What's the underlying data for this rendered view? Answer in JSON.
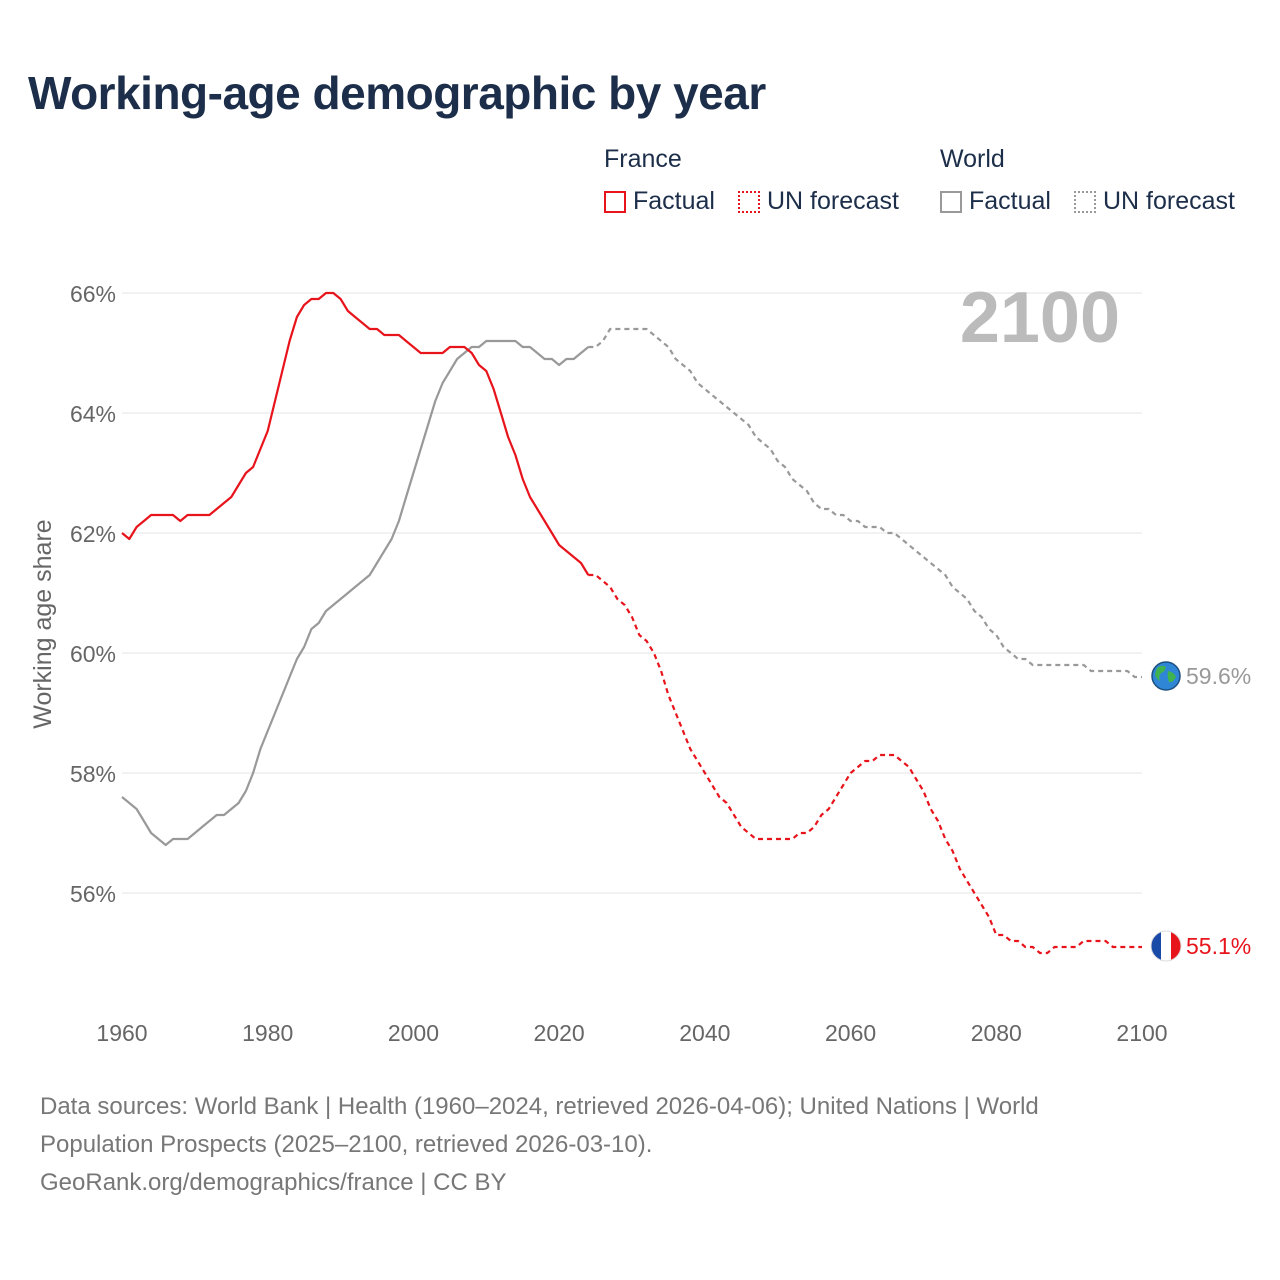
{
  "title": "Working-age demographic by year",
  "legend": {
    "france": {
      "name": "France",
      "factual": "Factual",
      "forecast": "UN forecast"
    },
    "world": {
      "name": "World",
      "factual": "Factual",
      "forecast": "UN forecast"
    }
  },
  "year_display": "2100",
  "end_labels": {
    "world": "59.6%",
    "france": "55.1%"
  },
  "footer": {
    "line1": "Data sources: World Bank | Health (1960–2024, retrieved 2026-04-06); United Nations | World",
    "line2": "Population Prospects (2025–2100, retrieved 2026-03-10).",
    "line3": "GeoRank.org/demographics/france | CC BY"
  },
  "colors": {
    "france": "#e8141c",
    "world": "#999999",
    "title": "#1c2e4a",
    "axis_text": "#666666",
    "grid": "#e6e6e6",
    "year": "#bbbbbb"
  },
  "chart_data": {
    "type": "line",
    "title": "Working-age demographic by year",
    "xlabel": "",
    "ylabel": "Working age share",
    "xlim": [
      1960,
      2100
    ],
    "ylim": [
      54,
      67
    ],
    "x_ticks": [
      1960,
      1980,
      2000,
      2020,
      2040,
      2060,
      2080,
      2100
    ],
    "y_ticks": [
      56,
      58,
      60,
      62,
      64,
      66
    ],
    "y_tick_labels": [
      "56%",
      "58%",
      "60%",
      "62%",
      "64%",
      "66%"
    ],
    "grid": true,
    "series": [
      {
        "name": "France",
        "segment": "Factual",
        "style": "solid",
        "points": [
          [
            1960,
            62.0
          ],
          [
            1961,
            61.9
          ],
          [
            1962,
            62.1
          ],
          [
            1963,
            62.2
          ],
          [
            1964,
            62.3
          ],
          [
            1965,
            62.3
          ],
          [
            1966,
            62.3
          ],
          [
            1967,
            62.3
          ],
          [
            1968,
            62.2
          ],
          [
            1969,
            62.3
          ],
          [
            1970,
            62.3
          ],
          [
            1971,
            62.3
          ],
          [
            1972,
            62.3
          ],
          [
            1973,
            62.4
          ],
          [
            1974,
            62.5
          ],
          [
            1975,
            62.6
          ],
          [
            1976,
            62.8
          ],
          [
            1977,
            63.0
          ],
          [
            1978,
            63.1
          ],
          [
            1979,
            63.4
          ],
          [
            1980,
            63.7
          ],
          [
            1981,
            64.2
          ],
          [
            1982,
            64.7
          ],
          [
            1983,
            65.2
          ],
          [
            1984,
            65.6
          ],
          [
            1985,
            65.8
          ],
          [
            1986,
            65.9
          ],
          [
            1987,
            65.9
          ],
          [
            1988,
            66.0
          ],
          [
            1989,
            66.0
          ],
          [
            1990,
            65.9
          ],
          [
            1991,
            65.7
          ],
          [
            1992,
            65.6
          ],
          [
            1993,
            65.5
          ],
          [
            1994,
            65.4
          ],
          [
            1995,
            65.4
          ],
          [
            1996,
            65.3
          ],
          [
            1997,
            65.3
          ],
          [
            1998,
            65.3
          ],
          [
            1999,
            65.2
          ],
          [
            2000,
            65.1
          ],
          [
            2001,
            65.0
          ],
          [
            2002,
            65.0
          ],
          [
            2003,
            65.0
          ],
          [
            2004,
            65.0
          ],
          [
            2005,
            65.1
          ],
          [
            2006,
            65.1
          ],
          [
            2007,
            65.1
          ],
          [
            2008,
            65.0
          ],
          [
            2009,
            64.8
          ],
          [
            2010,
            64.7
          ],
          [
            2011,
            64.4
          ],
          [
            2012,
            64.0
          ],
          [
            2013,
            63.6
          ],
          [
            2014,
            63.3
          ],
          [
            2015,
            62.9
          ],
          [
            2016,
            62.6
          ],
          [
            2017,
            62.4
          ],
          [
            2018,
            62.2
          ],
          [
            2019,
            62.0
          ],
          [
            2020,
            61.8
          ],
          [
            2021,
            61.7
          ],
          [
            2022,
            61.6
          ],
          [
            2023,
            61.5
          ],
          [
            2024,
            61.3
          ]
        ]
      },
      {
        "name": "France",
        "segment": "UN forecast",
        "style": "dashed",
        "points": [
          [
            2024,
            61.3
          ],
          [
            2025,
            61.3
          ],
          [
            2026,
            61.2
          ],
          [
            2027,
            61.1
          ],
          [
            2028,
            60.9
          ],
          [
            2029,
            60.8
          ],
          [
            2030,
            60.6
          ],
          [
            2031,
            60.3
          ],
          [
            2032,
            60.2
          ],
          [
            2033,
            60.0
          ],
          [
            2034,
            59.7
          ],
          [
            2035,
            59.3
          ],
          [
            2036,
            59.0
          ],
          [
            2037,
            58.7
          ],
          [
            2038,
            58.4
          ],
          [
            2039,
            58.2
          ],
          [
            2040,
            58.0
          ],
          [
            2041,
            57.8
          ],
          [
            2042,
            57.6
          ],
          [
            2043,
            57.5
          ],
          [
            2044,
            57.3
          ],
          [
            2045,
            57.1
          ],
          [
            2046,
            57.0
          ],
          [
            2047,
            56.9
          ],
          [
            2048,
            56.9
          ],
          [
            2049,
            56.9
          ],
          [
            2050,
            56.9
          ],
          [
            2051,
            56.9
          ],
          [
            2052,
            56.9
          ],
          [
            2053,
            57.0
          ],
          [
            2054,
            57.0
          ],
          [
            2055,
            57.1
          ],
          [
            2056,
            57.3
          ],
          [
            2057,
            57.4
          ],
          [
            2058,
            57.6
          ],
          [
            2059,
            57.8
          ],
          [
            2060,
            58.0
          ],
          [
            2061,
            58.1
          ],
          [
            2062,
            58.2
          ],
          [
            2063,
            58.2
          ],
          [
            2064,
            58.3
          ],
          [
            2065,
            58.3
          ],
          [
            2066,
            58.3
          ],
          [
            2067,
            58.2
          ],
          [
            2068,
            58.1
          ],
          [
            2069,
            57.9
          ],
          [
            2070,
            57.7
          ],
          [
            2071,
            57.4
          ],
          [
            2072,
            57.2
          ],
          [
            2073,
            56.9
          ],
          [
            2074,
            56.7
          ],
          [
            2075,
            56.4
          ],
          [
            2076,
            56.2
          ],
          [
            2077,
            56.0
          ],
          [
            2078,
            55.8
          ],
          [
            2079,
            55.6
          ],
          [
            2080,
            55.3
          ],
          [
            2081,
            55.3
          ],
          [
            2082,
            55.2
          ],
          [
            2083,
            55.2
          ],
          [
            2084,
            55.1
          ],
          [
            2085,
            55.1
          ],
          [
            2086,
            55.0
          ],
          [
            2087,
            55.0
          ],
          [
            2088,
            55.1
          ],
          [
            2089,
            55.1
          ],
          [
            2090,
            55.1
          ],
          [
            2091,
            55.1
          ],
          [
            2092,
            55.2
          ],
          [
            2093,
            55.2
          ],
          [
            2094,
            55.2
          ],
          [
            2095,
            55.2
          ],
          [
            2096,
            55.1
          ],
          [
            2097,
            55.1
          ],
          [
            2098,
            55.1
          ],
          [
            2099,
            55.1
          ],
          [
            2100,
            55.1
          ]
        ]
      },
      {
        "name": "World",
        "segment": "Factual",
        "style": "solid",
        "points": [
          [
            1960,
            57.6
          ],
          [
            1961,
            57.5
          ],
          [
            1962,
            57.4
          ],
          [
            1963,
            57.2
          ],
          [
            1964,
            57.0
          ],
          [
            1965,
            56.9
          ],
          [
            1966,
            56.8
          ],
          [
            1967,
            56.9
          ],
          [
            1968,
            56.9
          ],
          [
            1969,
            56.9
          ],
          [
            1970,
            57.0
          ],
          [
            1971,
            57.1
          ],
          [
            1972,
            57.2
          ],
          [
            1973,
            57.3
          ],
          [
            1974,
            57.3
          ],
          [
            1975,
            57.4
          ],
          [
            1976,
            57.5
          ],
          [
            1977,
            57.7
          ],
          [
            1978,
            58.0
          ],
          [
            1979,
            58.4
          ],
          [
            1980,
            58.7
          ],
          [
            1981,
            59.0
          ],
          [
            1982,
            59.3
          ],
          [
            1983,
            59.6
          ],
          [
            1984,
            59.9
          ],
          [
            1985,
            60.1
          ],
          [
            1986,
            60.4
          ],
          [
            1987,
            60.5
          ],
          [
            1988,
            60.7
          ],
          [
            1989,
            60.8
          ],
          [
            1990,
            60.9
          ],
          [
            1991,
            61.0
          ],
          [
            1992,
            61.1
          ],
          [
            1993,
            61.2
          ],
          [
            1994,
            61.3
          ],
          [
            1995,
            61.5
          ],
          [
            1996,
            61.7
          ],
          [
            1997,
            61.9
          ],
          [
            1998,
            62.2
          ],
          [
            1999,
            62.6
          ],
          [
            2000,
            63.0
          ],
          [
            2001,
            63.4
          ],
          [
            2002,
            63.8
          ],
          [
            2003,
            64.2
          ],
          [
            2004,
            64.5
          ],
          [
            2005,
            64.7
          ],
          [
            2006,
            64.9
          ],
          [
            2007,
            65.0
          ],
          [
            2008,
            65.1
          ],
          [
            2009,
            65.1
          ],
          [
            2010,
            65.2
          ],
          [
            2011,
            65.2
          ],
          [
            2012,
            65.2
          ],
          [
            2013,
            65.2
          ],
          [
            2014,
            65.2
          ],
          [
            2015,
            65.1
          ],
          [
            2016,
            65.1
          ],
          [
            2017,
            65.0
          ],
          [
            2018,
            64.9
          ],
          [
            2019,
            64.9
          ],
          [
            2020,
            64.8
          ],
          [
            2021,
            64.9
          ],
          [
            2022,
            64.9
          ],
          [
            2023,
            65.0
          ],
          [
            2024,
            65.1
          ]
        ]
      },
      {
        "name": "World",
        "segment": "UN forecast",
        "style": "dashed",
        "points": [
          [
            2024,
            65.1
          ],
          [
            2025,
            65.1
          ],
          [
            2026,
            65.2
          ],
          [
            2027,
            65.4
          ],
          [
            2028,
            65.4
          ],
          [
            2029,
            65.4
          ],
          [
            2030,
            65.4
          ],
          [
            2031,
            65.4
          ],
          [
            2032,
            65.4
          ],
          [
            2033,
            65.3
          ],
          [
            2034,
            65.2
          ],
          [
            2035,
            65.1
          ],
          [
            2036,
            64.9
          ],
          [
            2037,
            64.8
          ],
          [
            2038,
            64.7
          ],
          [
            2039,
            64.5
          ],
          [
            2040,
            64.4
          ],
          [
            2041,
            64.3
          ],
          [
            2042,
            64.2
          ],
          [
            2043,
            64.1
          ],
          [
            2044,
            64.0
          ],
          [
            2045,
            63.9
          ],
          [
            2046,
            63.8
          ],
          [
            2047,
            63.6
          ],
          [
            2048,
            63.5
          ],
          [
            2049,
            63.4
          ],
          [
            2050,
            63.2
          ],
          [
            2051,
            63.1
          ],
          [
            2052,
            62.9
          ],
          [
            2053,
            62.8
          ],
          [
            2054,
            62.7
          ],
          [
            2055,
            62.5
          ],
          [
            2056,
            62.4
          ],
          [
            2057,
            62.4
          ],
          [
            2058,
            62.3
          ],
          [
            2059,
            62.3
          ],
          [
            2060,
            62.2
          ],
          [
            2061,
            62.2
          ],
          [
            2062,
            62.1
          ],
          [
            2063,
            62.1
          ],
          [
            2064,
            62.1
          ],
          [
            2065,
            62.0
          ],
          [
            2066,
            62.0
          ],
          [
            2067,
            61.9
          ],
          [
            2068,
            61.8
          ],
          [
            2069,
            61.7
          ],
          [
            2070,
            61.6
          ],
          [
            2071,
            61.5
          ],
          [
            2072,
            61.4
          ],
          [
            2073,
            61.3
          ],
          [
            2074,
            61.1
          ],
          [
            2075,
            61.0
          ],
          [
            2076,
            60.9
          ],
          [
            2077,
            60.7
          ],
          [
            2078,
            60.6
          ],
          [
            2079,
            60.4
          ],
          [
            2080,
            60.3
          ],
          [
            2081,
            60.1
          ],
          [
            2082,
            60.0
          ],
          [
            2083,
            59.9
          ],
          [
            2084,
            59.9
          ],
          [
            2085,
            59.8
          ],
          [
            2086,
            59.8
          ],
          [
            2087,
            59.8
          ],
          [
            2088,
            59.8
          ],
          [
            2089,
            59.8
          ],
          [
            2090,
            59.8
          ],
          [
            2091,
            59.8
          ],
          [
            2092,
            59.8
          ],
          [
            2093,
            59.7
          ],
          [
            2094,
            59.7
          ],
          [
            2095,
            59.7
          ],
          [
            2096,
            59.7
          ],
          [
            2097,
            59.7
          ],
          [
            2098,
            59.7
          ],
          [
            2099,
            59.6
          ],
          [
            2100,
            59.6
          ]
        ]
      }
    ]
  }
}
